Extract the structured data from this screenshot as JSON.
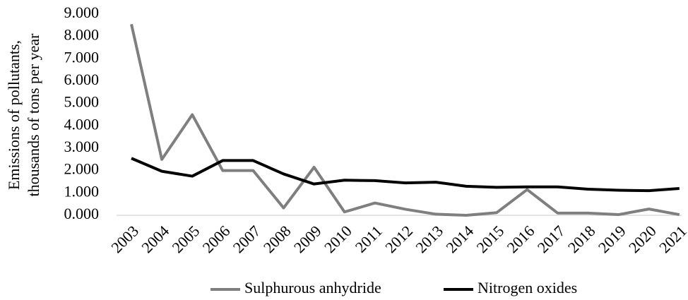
{
  "chart_data": {
    "type": "line",
    "ylabel": [
      "Emissions of pollutants,",
      "thousands of tons per year"
    ],
    "categories": [
      "2003",
      "2004",
      "2005",
      "2006",
      "2007",
      "2008",
      "2009",
      "2010",
      "2011",
      "2012",
      "2013",
      "2014",
      "2015",
      "2016",
      "2017",
      "2018",
      "2019",
      "2020",
      "2021"
    ],
    "series": [
      {
        "name": "Sulphurous anhydride",
        "color": "#7f7f7f",
        "values": [
          8.55,
          2.5,
          4.5,
          2.0,
          2.0,
          0.33,
          2.15,
          0.15,
          0.55,
          0.27,
          0.05,
          0.0,
          0.12,
          1.15,
          0.1,
          0.1,
          0.03,
          0.28,
          0.03
        ]
      },
      {
        "name": "Nitrogen oxides",
        "color": "#000000",
        "values": [
          2.55,
          1.97,
          1.75,
          2.45,
          2.45,
          1.85,
          1.4,
          1.57,
          1.55,
          1.45,
          1.48,
          1.3,
          1.25,
          1.27,
          1.27,
          1.17,
          1.12,
          1.1,
          1.2
        ]
      }
    ],
    "ylim": [
      0,
      9
    ],
    "yticks": [
      {
        "value": 0,
        "label": "0.000"
      },
      {
        "value": 1,
        "label": "1.000"
      },
      {
        "value": 2,
        "label": "2.000"
      },
      {
        "value": 3,
        "label": "3.000"
      },
      {
        "value": 4,
        "label": "4.000"
      },
      {
        "value": 5,
        "label": "5.000"
      },
      {
        "value": 6,
        "label": "6.000"
      },
      {
        "value": 7,
        "label": "7.000"
      },
      {
        "value": 8,
        "label": "8.000"
      },
      {
        "value": 9,
        "label": "9.000"
      }
    ],
    "grid": false,
    "legend": "bottom"
  }
}
